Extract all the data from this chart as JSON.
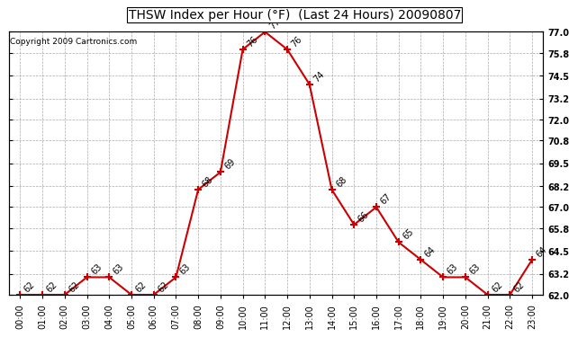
{
  "title": "THSW Index per Hour (°F)  (Last 24 Hours) 20090807",
  "copyright": "Copyright 2009 Cartronics.com",
  "hours": [
    "00:00",
    "01:00",
    "02:00",
    "03:00",
    "04:00",
    "05:00",
    "06:00",
    "07:00",
    "08:00",
    "09:00",
    "10:00",
    "11:00",
    "12:00",
    "13:00",
    "14:00",
    "15:00",
    "16:00",
    "17:00",
    "18:00",
    "19:00",
    "20:00",
    "21:00",
    "22:00",
    "23:00"
  ],
  "x_indices": [
    0,
    1,
    2,
    3,
    4,
    5,
    6,
    7,
    8,
    9,
    10,
    11,
    12,
    13,
    14,
    15,
    16,
    17,
    18,
    19,
    20,
    21,
    22,
    23
  ],
  "data_values": [
    62,
    62,
    62,
    63,
    63,
    62,
    62,
    63,
    68,
    69,
    76,
    77,
    76,
    74,
    68,
    66,
    67,
    65,
    64,
    63,
    63,
    62,
    62,
    64
  ],
  "ylim_min": 62.0,
  "ylim_max": 77.0,
  "yticks": [
    62.0,
    63.2,
    64.5,
    65.8,
    67.0,
    68.2,
    69.5,
    70.8,
    72.0,
    73.2,
    74.5,
    75.8,
    77.0
  ],
  "line_color": "#cc0000",
  "marker_color": "#cc0000",
  "bg_color": "#ffffff",
  "grid_color": "#aaaaaa",
  "title_fontsize": 10,
  "label_fontsize": 7,
  "annotation_fontsize": 7,
  "copyright_fontsize": 6.5
}
